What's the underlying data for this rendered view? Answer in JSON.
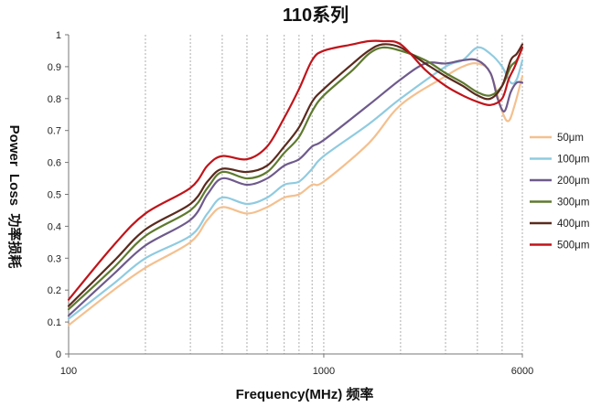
{
  "chart_data": {
    "type": "line",
    "title": "110系列",
    "xlabel": "Frequency(MHz) 频率",
    "ylabel": "Power  Loss  功率损耗",
    "x_scale": "log",
    "xlim": [
      100,
      6000
    ],
    "ylim": [
      0,
      1
    ],
    "x_tick_labels": [
      {
        "value": 100,
        "label": "100"
      },
      {
        "value": 1000,
        "label": "1000"
      },
      {
        "value": 6000,
        "label": "6000"
      }
    ],
    "y_ticks": [
      0,
      0.1,
      0.2,
      0.3,
      0.4,
      0.5,
      0.6,
      0.7,
      0.8,
      0.9,
      1
    ],
    "y_tick_labels": [
      "0",
      "0.1",
      "0.2",
      "0.3",
      "0.4",
      "0.5",
      "0.6",
      "0.7",
      "0.8",
      "0.9",
      "1"
    ],
    "x_gridlines": [
      200,
      300,
      400,
      500,
      600,
      700,
      800,
      900,
      1000,
      2000,
      3000,
      4000,
      5000,
      6000
    ],
    "grid": "vertical-dashed",
    "legend_position": "right",
    "series": [
      {
        "name": "50μm",
        "color": "#f4c08f",
        "points": [
          [
            100,
            0.09
          ],
          [
            150,
            0.2
          ],
          [
            200,
            0.27
          ],
          [
            300,
            0.35
          ],
          [
            350,
            0.42
          ],
          [
            400,
            0.46
          ],
          [
            500,
            0.44
          ],
          [
            600,
            0.46
          ],
          [
            700,
            0.49
          ],
          [
            800,
            0.5
          ],
          [
            900,
            0.53
          ],
          [
            1000,
            0.54
          ],
          [
            1500,
            0.66
          ],
          [
            2000,
            0.78
          ],
          [
            3000,
            0.87
          ],
          [
            3500,
            0.9
          ],
          [
            4000,
            0.91
          ],
          [
            4500,
            0.88
          ],
          [
            5000,
            0.76
          ],
          [
            5300,
            0.73
          ],
          [
            5600,
            0.78
          ],
          [
            6000,
            0.87
          ]
        ]
      },
      {
        "name": "100μm",
        "color": "#8fcbe0",
        "points": [
          [
            100,
            0.11
          ],
          [
            150,
            0.22
          ],
          [
            200,
            0.3
          ],
          [
            300,
            0.37
          ],
          [
            350,
            0.44
          ],
          [
            400,
            0.49
          ],
          [
            500,
            0.47
          ],
          [
            600,
            0.49
          ],
          [
            700,
            0.53
          ],
          [
            800,
            0.54
          ],
          [
            900,
            0.58
          ],
          [
            1000,
            0.62
          ],
          [
            1500,
            0.72
          ],
          [
            2000,
            0.8
          ],
          [
            3000,
            0.9
          ],
          [
            3500,
            0.92
          ],
          [
            4000,
            0.96
          ],
          [
            4500,
            0.94
          ],
          [
            5000,
            0.9
          ],
          [
            5400,
            0.85
          ],
          [
            5700,
            0.86
          ],
          [
            6000,
            0.92
          ]
        ]
      },
      {
        "name": "200μm",
        "color": "#6e5a8c",
        "points": [
          [
            100,
            0.12
          ],
          [
            150,
            0.25
          ],
          [
            200,
            0.34
          ],
          [
            300,
            0.42
          ],
          [
            350,
            0.5
          ],
          [
            400,
            0.55
          ],
          [
            500,
            0.53
          ],
          [
            600,
            0.55
          ],
          [
            700,
            0.59
          ],
          [
            800,
            0.61
          ],
          [
            900,
            0.65
          ],
          [
            1000,
            0.67
          ],
          [
            1500,
            0.78
          ],
          [
            2000,
            0.86
          ],
          [
            2500,
            0.91
          ],
          [
            3000,
            0.91
          ],
          [
            3500,
            0.92
          ],
          [
            4000,
            0.92
          ],
          [
            4500,
            0.88
          ],
          [
            4800,
            0.8
          ],
          [
            5100,
            0.76
          ],
          [
            5400,
            0.82
          ],
          [
            5700,
            0.85
          ],
          [
            6000,
            0.85
          ]
        ]
      },
      {
        "name": "300μm",
        "color": "#5e7a2e",
        "points": [
          [
            100,
            0.14
          ],
          [
            150,
            0.27
          ],
          [
            200,
            0.37
          ],
          [
            300,
            0.45
          ],
          [
            350,
            0.52
          ],
          [
            400,
            0.57
          ],
          [
            500,
            0.55
          ],
          [
            600,
            0.57
          ],
          [
            700,
            0.63
          ],
          [
            800,
            0.68
          ],
          [
            900,
            0.76
          ],
          [
            1000,
            0.81
          ],
          [
            1300,
            0.89
          ],
          [
            1500,
            0.94
          ],
          [
            1700,
            0.96
          ],
          [
            2000,
            0.95
          ],
          [
            2500,
            0.92
          ],
          [
            3000,
            0.88
          ],
          [
            3500,
            0.85
          ],
          [
            4000,
            0.82
          ],
          [
            4500,
            0.81
          ],
          [
            5000,
            0.84
          ],
          [
            5400,
            0.9
          ],
          [
            5700,
            0.92
          ],
          [
            6000,
            0.96
          ]
        ]
      },
      {
        "name": "400μm",
        "color": "#5a2a1e",
        "points": [
          [
            100,
            0.15
          ],
          [
            150,
            0.29
          ],
          [
            200,
            0.39
          ],
          [
            300,
            0.47
          ],
          [
            350,
            0.54
          ],
          [
            400,
            0.58
          ],
          [
            500,
            0.57
          ],
          [
            600,
            0.59
          ],
          [
            700,
            0.65
          ],
          [
            800,
            0.71
          ],
          [
            900,
            0.79
          ],
          [
            1000,
            0.83
          ],
          [
            1300,
            0.91
          ],
          [
            1500,
            0.95
          ],
          [
            1700,
            0.97
          ],
          [
            2000,
            0.96
          ],
          [
            2500,
            0.91
          ],
          [
            3000,
            0.87
          ],
          [
            3500,
            0.84
          ],
          [
            4000,
            0.81
          ],
          [
            4500,
            0.8
          ],
          [
            5000,
            0.84
          ],
          [
            5400,
            0.92
          ],
          [
            5700,
            0.94
          ],
          [
            6000,
            0.97
          ]
        ]
      },
      {
        "name": "500μm",
        "color": "#c0141a",
        "points": [
          [
            100,
            0.17
          ],
          [
            150,
            0.34
          ],
          [
            200,
            0.44
          ],
          [
            300,
            0.52
          ],
          [
            350,
            0.59
          ],
          [
            400,
            0.62
          ],
          [
            500,
            0.61
          ],
          [
            600,
            0.65
          ],
          [
            700,
            0.74
          ],
          [
            800,
            0.83
          ],
          [
            900,
            0.92
          ],
          [
            1000,
            0.95
          ],
          [
            1300,
            0.97
          ],
          [
            1500,
            0.98
          ],
          [
            1700,
            0.98
          ],
          [
            2000,
            0.97
          ],
          [
            2500,
            0.89
          ],
          [
            3000,
            0.84
          ],
          [
            3500,
            0.81
          ],
          [
            4000,
            0.79
          ],
          [
            4500,
            0.78
          ],
          [
            5000,
            0.8
          ],
          [
            5300,
            0.86
          ],
          [
            5600,
            0.9
          ],
          [
            6000,
            0.96
          ]
        ]
      }
    ]
  }
}
